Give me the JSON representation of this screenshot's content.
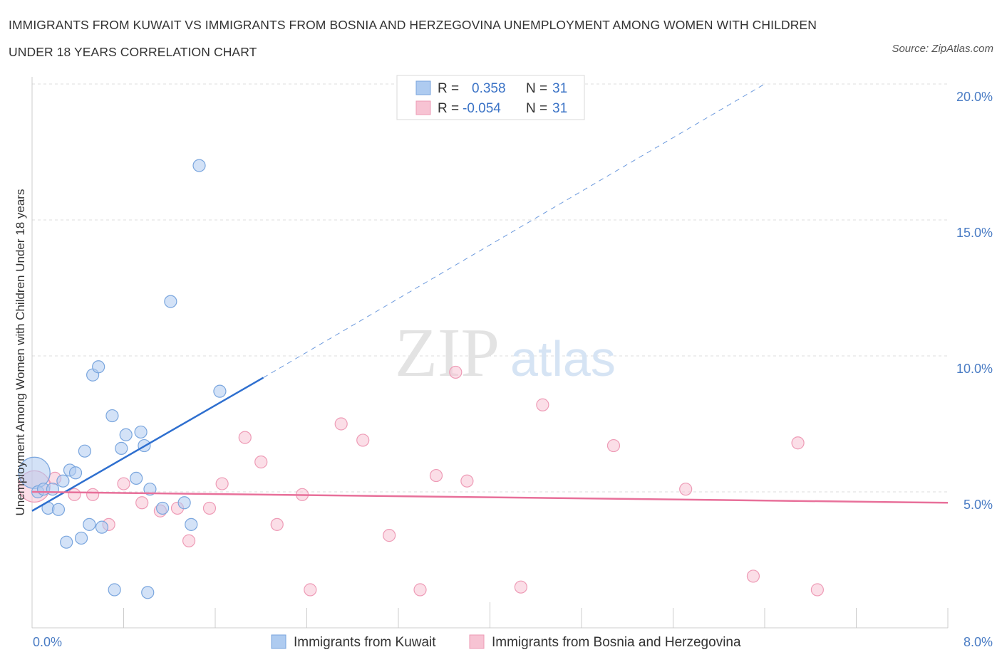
{
  "header": {
    "title": "IMMIGRANTS FROM KUWAIT VS IMMIGRANTS FROM BOSNIA AND HERZEGOVINA UNEMPLOYMENT AMONG WOMEN WITH CHILDREN UNDER 18 YEARS CORRELATION CHART",
    "source": "Source: ZipAtlas.com"
  },
  "watermark": {
    "zip": "ZIP",
    "atlas": "atlas"
  },
  "colors": {
    "kuwait_fill": "#aecbf0",
    "kuwait_stroke": "#7aa6de",
    "kuwait_line": "#2e6fcf",
    "bosnia_fill": "#f7c3d3",
    "bosnia_stroke": "#ee9bb6",
    "bosnia_line": "#e8709a",
    "grid": "#dddddd",
    "tick_text": "#4a7cc4"
  },
  "legend": {
    "rows": [
      {
        "r_label": "R =",
        "r_value": "0.358",
        "n_label": "N =",
        "n_value": "31"
      },
      {
        "r_label": "R =",
        "r_value": "-0.054",
        "n_label": "N =",
        "n_value": "31"
      }
    ]
  },
  "chart_data": {
    "type": "scatter",
    "title": "IMMIGRANTS FROM KUWAIT VS IMMIGRANTS FROM BOSNIA AND HERZEGOVINA UNEMPLOYMENT AMONG WOMEN WITH CHILDREN UNDER 18 YEARS CORRELATION CHART",
    "xlabel": "",
    "ylabel": "Unemployment Among Women with Children Under 18 years",
    "xlim": [
      0,
      8
    ],
    "ylim": [
      0,
      20
    ],
    "x_ticks": [
      "0.0%",
      "8.0%"
    ],
    "y_ticks": [
      {
        "value": 5,
        "label": "5.0%"
      },
      {
        "value": 10,
        "label": "10.0%"
      },
      {
        "value": 15,
        "label": "15.0%"
      },
      {
        "value": 20,
        "label": "20.0%"
      }
    ],
    "grid": true,
    "legend_position": "top-center",
    "series": [
      {
        "name": "Immigrants from Kuwait",
        "r": 0.358,
        "n": 31,
        "trend": {
          "x": [
            0.0,
            2.02
          ],
          "y": [
            4.3,
            9.2
          ],
          "dashed_extension": {
            "x": [
              2.02,
              6.4
            ],
            "y": [
              9.2,
              20.0
            ]
          }
        },
        "points": [
          {
            "x": 0.02,
            "y": 5.7,
            "big": true
          },
          {
            "x": 0.05,
            "y": 5.0
          },
          {
            "x": 0.1,
            "y": 5.1
          },
          {
            "x": 0.14,
            "y": 4.4
          },
          {
            "x": 0.18,
            "y": 5.1
          },
          {
            "x": 0.23,
            "y": 4.35
          },
          {
            "x": 0.27,
            "y": 5.4
          },
          {
            "x": 0.3,
            "y": 3.15
          },
          {
            "x": 0.33,
            "y": 5.8
          },
          {
            "x": 0.38,
            "y": 5.7
          },
          {
            "x": 0.43,
            "y": 3.3
          },
          {
            "x": 0.46,
            "y": 6.5
          },
          {
            "x": 0.5,
            "y": 3.8
          },
          {
            "x": 0.53,
            "y": 9.3
          },
          {
            "x": 0.58,
            "y": 9.6
          },
          {
            "x": 0.61,
            "y": 3.7
          },
          {
            "x": 0.7,
            "y": 7.8
          },
          {
            "x": 0.72,
            "y": 1.4
          },
          {
            "x": 0.78,
            "y": 6.6
          },
          {
            "x": 0.82,
            "y": 7.1
          },
          {
            "x": 0.91,
            "y": 5.5
          },
          {
            "x": 0.95,
            "y": 7.2
          },
          {
            "x": 0.98,
            "y": 6.7
          },
          {
            "x": 1.01,
            "y": 1.3
          },
          {
            "x": 1.03,
            "y": 5.1
          },
          {
            "x": 1.14,
            "y": 4.4
          },
          {
            "x": 1.21,
            "y": 12.0
          },
          {
            "x": 1.33,
            "y": 4.6
          },
          {
            "x": 1.39,
            "y": 3.8
          },
          {
            "x": 1.46,
            "y": 17.0
          },
          {
            "x": 1.64,
            "y": 8.7
          }
        ]
      },
      {
        "name": "Immigrants from Bosnia and Herzegovina",
        "r": -0.054,
        "n": 31,
        "trend": {
          "x": [
            0.0,
            8.0
          ],
          "y": [
            5.0,
            4.6
          ]
        },
        "points": [
          {
            "x": 0.02,
            "y": 5.2,
            "big": true
          },
          {
            "x": 0.2,
            "y": 5.5
          },
          {
            "x": 0.37,
            "y": 4.9
          },
          {
            "x": 0.53,
            "y": 4.9
          },
          {
            "x": 0.67,
            "y": 3.8
          },
          {
            "x": 0.8,
            "y": 5.3
          },
          {
            "x": 0.96,
            "y": 4.6
          },
          {
            "x": 1.12,
            "y": 4.3
          },
          {
            "x": 1.27,
            "y": 4.4
          },
          {
            "x": 1.37,
            "y": 3.2
          },
          {
            "x": 1.55,
            "y": 4.4
          },
          {
            "x": 1.66,
            "y": 5.3
          },
          {
            "x": 1.86,
            "y": 7.0
          },
          {
            "x": 2.0,
            "y": 6.1
          },
          {
            "x": 2.14,
            "y": 3.8
          },
          {
            "x": 2.36,
            "y": 4.9
          },
          {
            "x": 2.43,
            "y": 1.4
          },
          {
            "x": 2.7,
            "y": 7.5
          },
          {
            "x": 2.89,
            "y": 6.9
          },
          {
            "x": 3.12,
            "y": 3.4
          },
          {
            "x": 3.39,
            "y": 1.4
          },
          {
            "x": 3.53,
            "y": 5.6
          },
          {
            "x": 3.7,
            "y": 9.4
          },
          {
            "x": 3.8,
            "y": 5.4
          },
          {
            "x": 4.27,
            "y": 1.5
          },
          {
            "x": 4.46,
            "y": 8.2
          },
          {
            "x": 5.08,
            "y": 6.7
          },
          {
            "x": 5.71,
            "y": 5.1
          },
          {
            "x": 6.3,
            "y": 1.9
          },
          {
            "x": 6.69,
            "y": 6.8
          },
          {
            "x": 6.86,
            "y": 1.4
          }
        ]
      }
    ]
  }
}
